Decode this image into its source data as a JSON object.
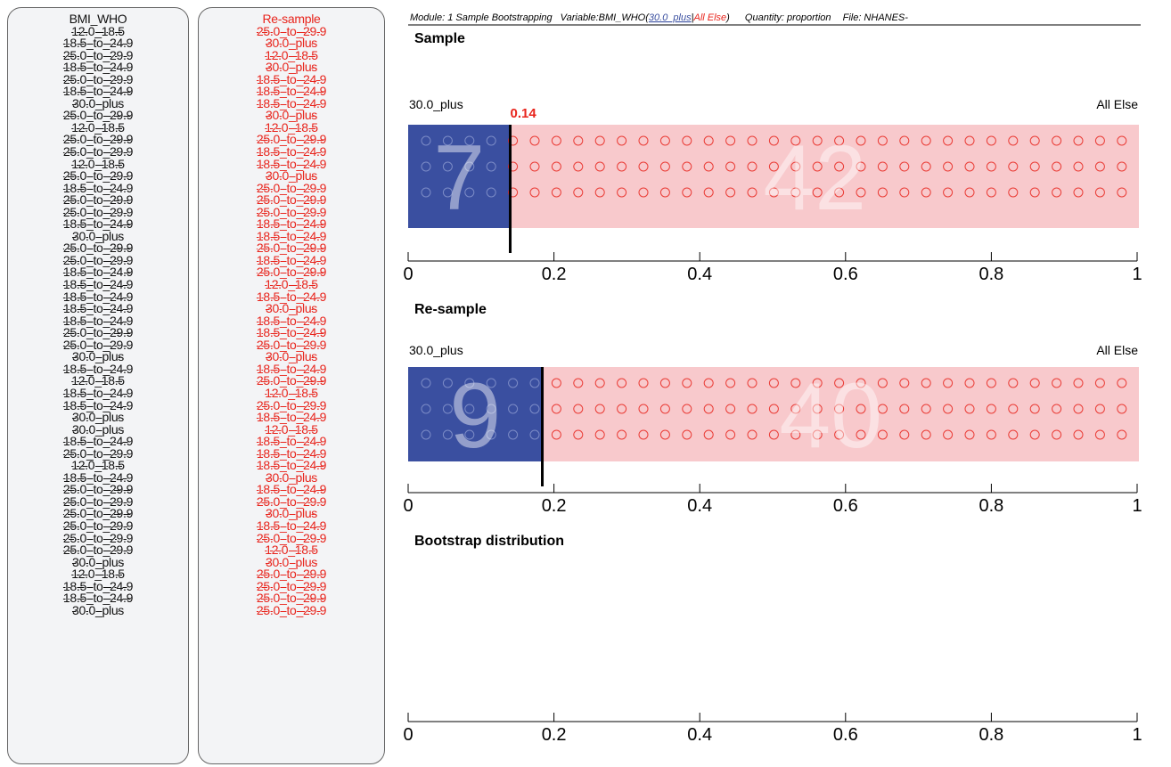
{
  "sample_column": {
    "header": "BMI_WHO",
    "values": [
      "12.0_18.5",
      "18.5_to_24.9",
      "25.0_to_29.9",
      "18.5_to_24.9",
      "25.0_to_29.9",
      "18.5_to_24.9",
      "30.0_plus",
      "25.0_to_29.9",
      "12.0_18.5",
      "25.0_to_29.9",
      "25.0_to_29.9",
      "12.0_18.5",
      "25.0_to_29.9",
      "18.5_to_24.9",
      "25.0_to_29.9",
      "25.0_to_29.9",
      "18.5_to_24.9",
      "30.0_plus",
      "25.0_to_29.9",
      "25.0_to_29.9",
      "18.5_to_24.9",
      "18.5_to_24.9",
      "18.5_to_24.9",
      "18.5_to_24.9",
      "18.5_to_24.9",
      "25.0_to_29.9",
      "25.0_to_29.9",
      "30.0_plus",
      "18.5_to_24.9",
      "12.0_18.5",
      "18.5_to_24.9",
      "18.5_to_24.9",
      "30.0_plus",
      "30.0_plus",
      "18.5_to_24.9",
      "25.0_to_29.9",
      "12.0_18.5",
      "18.5_to_24.9",
      "25.0_to_29.9",
      "25.0_to_29.9",
      "25.0_to_29.9",
      "25.0_to_29.9",
      "25.0_to_29.9",
      "25.0_to_29.9",
      "30.0_plus",
      "12.0_18.5",
      "18.5_to_24.9",
      "18.5_to_24.9",
      "30.0_plus"
    ]
  },
  "resample_column": {
    "header": "Re-sample",
    "values": [
      "25.0_to_29.9",
      "30.0_plus",
      "12.0_18.5",
      "30.0_plus",
      "18.5_to_24.9",
      "18.5_to_24.9",
      "18.5_to_24.9",
      "30.0_plus",
      "12.0_18.5",
      "25.0_to_29.9",
      "18.5_to_24.9",
      "18.5_to_24.9",
      "30.0_plus",
      "25.0_to_29.9",
      "25.0_to_29.9",
      "25.0_to_29.9",
      "18.5_to_24.9",
      "18.5_to_24.9",
      "25.0_to_29.9",
      "18.5_to_24.9",
      "25.0_to_29.9",
      "12.0_18.5",
      "18.5_to_24.9",
      "30.0_plus",
      "18.5_to_24.9",
      "18.5_to_24.9",
      "25.0_to_29.9",
      "30.0_plus",
      "18.5_to_24.9",
      "25.0_to_29.9",
      "12.0_18.5",
      "25.0_to_29.9",
      "18.5_to_24.9",
      "12.0_18.5",
      "18.5_to_24.9",
      "18.5_to_24.9",
      "18.5_to_24.9",
      "30.0_plus",
      "18.5_to_24.9",
      "25.0_to_29.9",
      "30.0_plus",
      "18.5_to_24.9",
      "25.0_to_29.9",
      "12.0_18.5",
      "30.0_plus",
      "25.0_to_29.9",
      "25.0_to_29.9",
      "25.0_to_29.9",
      "25.0_to_29.9"
    ]
  },
  "header_bar": {
    "module": "Module: 1 Sample Bootstrapping",
    "variable_label": "Variable:BMI_WHO(",
    "focus_value": "30.0_plus",
    "separator": "|",
    "other_value": "All Else",
    "close_paren": ")",
    "quantity": "Quantity: proportion",
    "file": "File: NHANES-"
  },
  "colors": {
    "focus": "#3a4fa0",
    "other": "#f8c9cc",
    "circle_focus": "#8c9ad0",
    "circle_other": "#e8241c",
    "stat": "#e8241c"
  },
  "sample_plot": {
    "title": "Sample",
    "left_label": "30.0_plus",
    "right_label": "All Else",
    "focus_count": "7",
    "other_count": "42",
    "proportion": 0.14,
    "stat_label": "0.14"
  },
  "resample_plot": {
    "title": "Re-sample",
    "left_label": "30.0_plus",
    "right_label": "All Else",
    "focus_count": "9",
    "other_count": "40",
    "proportion": 0.184
  },
  "bootstrap_plot": {
    "title": "Bootstrap distribution"
  },
  "axis": {
    "ticks": [
      0,
      0.2,
      0.4,
      0.6,
      0.8,
      1
    ],
    "tick_labels": [
      "0",
      "0.2",
      "0.4",
      "0.6",
      "0.8",
      "1"
    ]
  }
}
